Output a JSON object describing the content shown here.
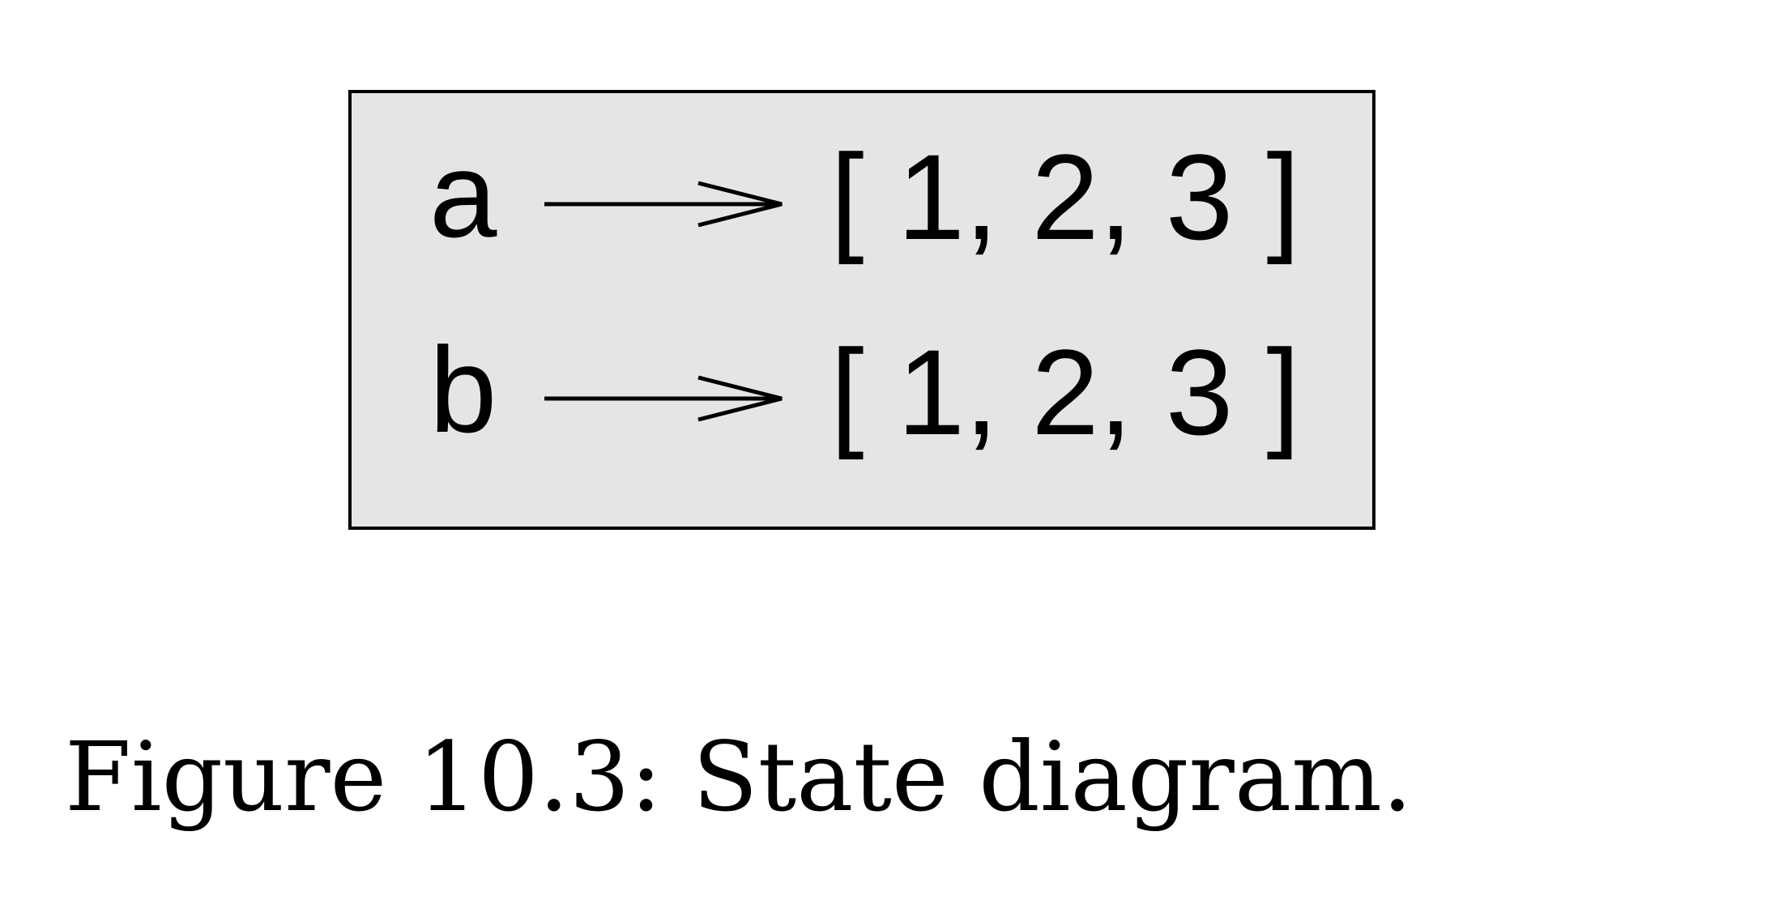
{
  "diagram": {
    "rows": [
      {
        "name": "a",
        "value": "[ 1, 2, 3 ]"
      },
      {
        "name": "b",
        "value": "[ 1, 2, 3 ]"
      }
    ]
  },
  "caption": "Figure 10.3: State diagram."
}
